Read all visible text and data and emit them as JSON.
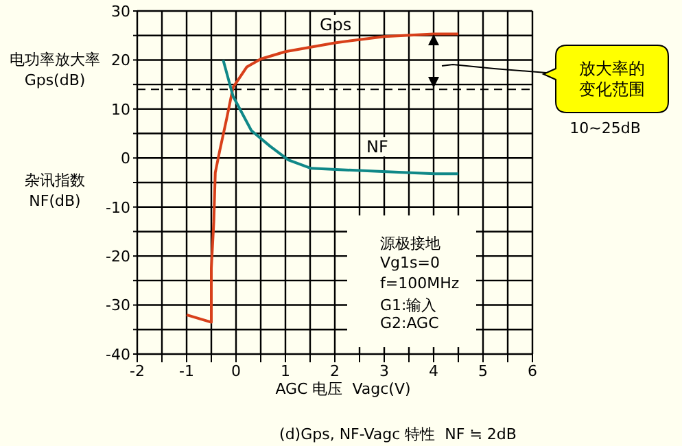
{
  "chart_data": {
    "type": "line",
    "ylabel": "电功率放大率\nGps(dB)",
    "xlabel": "AGC 电压  Vagc(V)",
    "xlim": [
      -2,
      6
    ],
    "xticks": [
      -2,
      {
        "value": -1.5,
        "label": null
      },
      -1,
      {
        "value": -0.5,
        "label": null
      },
      0,
      {
        "value": 0.5,
        "label": null
      },
      1,
      {
        "value": 1.5,
        "label": null
      },
      2,
      {
        "value": 2.5,
        "label": null
      },
      3,
      {
        "value": 3.5,
        "label": null
      },
      4,
      {
        "value": 4.5,
        "label": null
      },
      5,
      {
        "value": 5.5,
        "label": null
      },
      6
    ],
    "ylim": [
      -40,
      30
    ],
    "yticks": [
      -40,
      {
        "value": -35,
        "label": null
      },
      -30,
      {
        "value": -25,
        "label": null
      },
      -20,
      {
        "value": -15,
        "label": null
      },
      -10,
      {
        "value": -5,
        "label": null
      },
      0,
      {
        "value": 5,
        "label": null
      },
      10,
      {
        "value": 15,
        "label": null
      },
      20,
      {
        "value": 25,
        "label": null
      },
      30
    ],
    "grid": true,
    "line_style": "solid",
    "series": [
      {
        "name": "Gps",
        "color": "#d8401a",
        "x": [
          -1,
          -0.5,
          -0.5,
          -0.45,
          -0.42,
          -0.33,
          -0.19,
          -0.06,
          0.22,
          0.5,
          1,
          2,
          3,
          4,
          4.5
        ],
        "values": [
          -32,
          -33.5,
          -22.5,
          -13,
          -3,
          1.5,
          8,
          14.4,
          18.6,
          20.2,
          21.7,
          23.5,
          24.8,
          25.3,
          25.3
        ]
      },
      {
        "name": "NF",
        "color": "#108888",
        "x": [
          -0.26,
          -0.06,
          0.31,
          0.69,
          1.06,
          1.52,
          2.81,
          4.02,
          4.5
        ],
        "values": [
          20,
          12.6,
          5.6,
          2.4,
          -0.4,
          -2.1,
          -2.7,
          -3.2,
          -3.2
        ]
      }
    ],
    "ref_lines": [
      {
        "axis": "y",
        "value": 14,
        "label": null,
        "color": "#000000",
        "line_style": "dashed"
      }
    ],
    "annotations": [
      "杂讯指数\nNF(dB)",
      "源极接地",
      "Vg1s=0",
      "f=100MHz",
      "G1:输入",
      "G2:AGC",
      "放大率的变化范围",
      "10~25dB",
      "(d)Gps, NF-Vagc 特性  NF ≒ 2dB"
    ]
  }
}
